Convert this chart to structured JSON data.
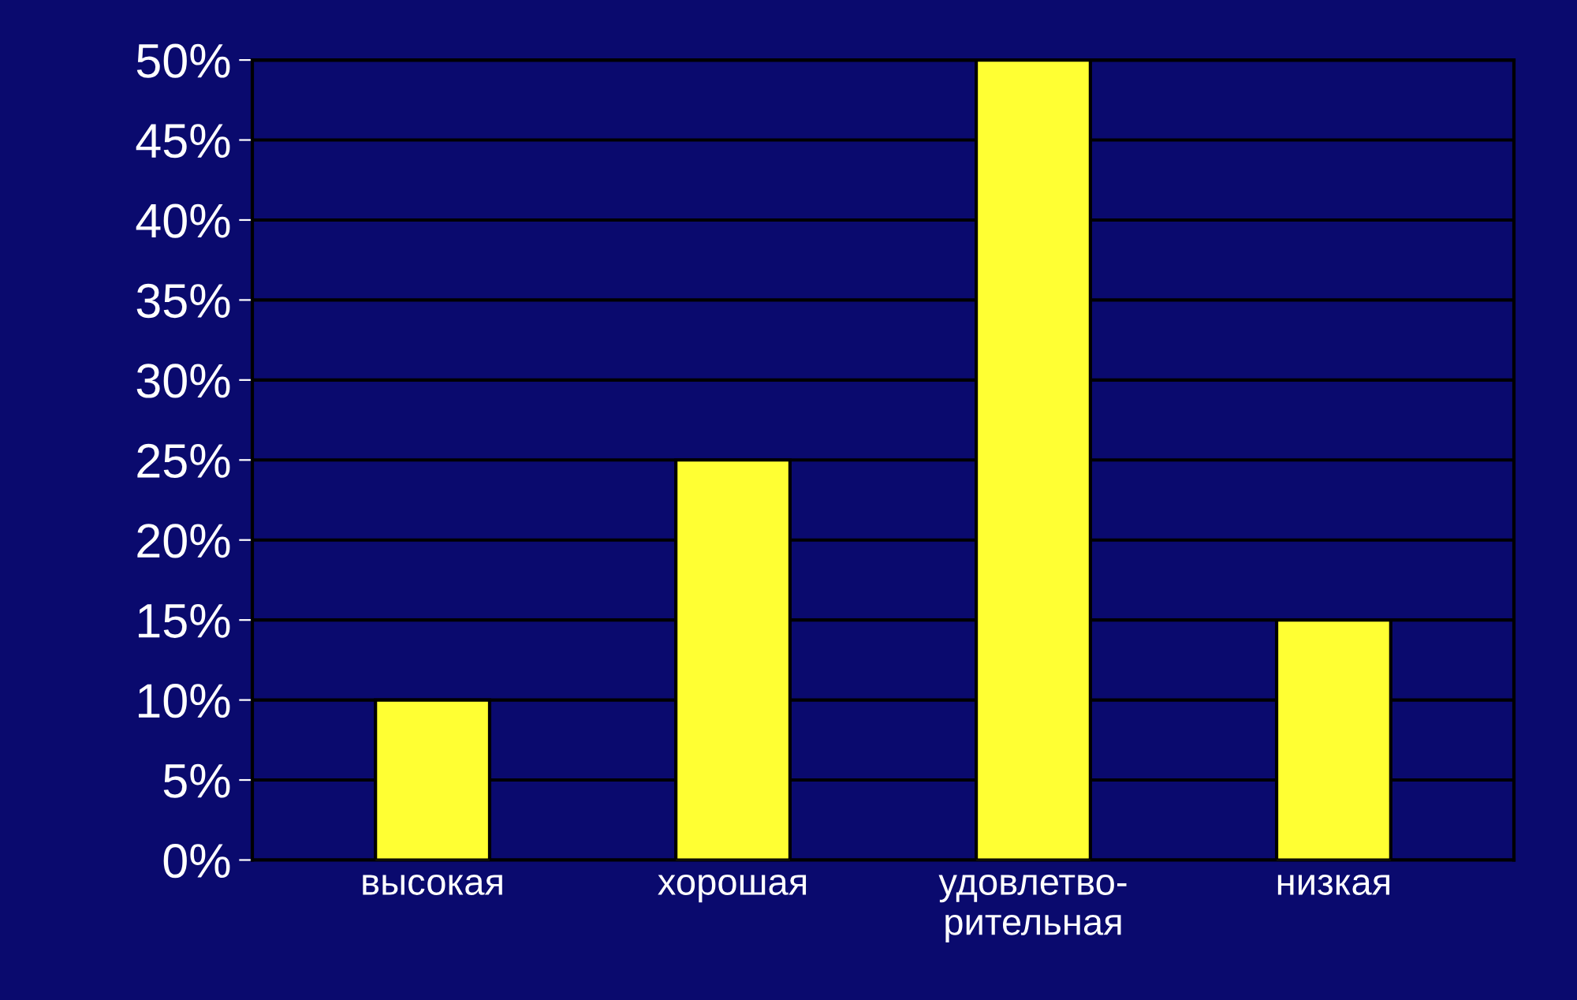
{
  "chart_data": {
    "type": "bar",
    "categories": [
      "высокая",
      "хорошая",
      "удовлетво-\nрительная",
      "низкая"
    ],
    "values": [
      10,
      25,
      50,
      15
    ],
    "color": "#ffff33",
    "ylim": [
      0,
      50
    ],
    "yticks": [
      {
        "value": 0,
        "label": "0%"
      },
      {
        "value": 5,
        "label": "5%"
      },
      {
        "value": 10,
        "label": "10%"
      },
      {
        "value": 15,
        "label": "15%"
      },
      {
        "value": 20,
        "label": "20%"
      },
      {
        "value": 25,
        "label": "25%"
      },
      {
        "value": 30,
        "label": "30%"
      },
      {
        "value": 35,
        "label": "35%"
      },
      {
        "value": 40,
        "label": "40%"
      },
      {
        "value": 45,
        "label": "45%"
      },
      {
        "value": 50,
        "label": "50%"
      }
    ],
    "grid": "y"
  }
}
